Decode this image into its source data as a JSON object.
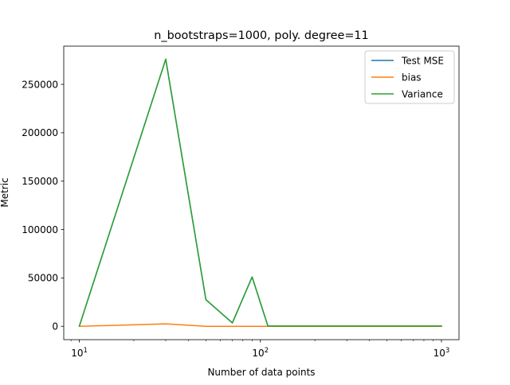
{
  "chart_data": {
    "type": "line",
    "title": "n_bootstraps=1000, poly. degree=11",
    "xlabel": "Number of data points",
    "ylabel": "Metric",
    "xscale": "log",
    "xlim": [
      8.2,
      1250
    ],
    "ylim": [
      -13800,
      289500
    ],
    "x": [
      10,
      30,
      50,
      70,
      90,
      110,
      1000
    ],
    "xticks": [
      {
        "value": 10,
        "base": "10",
        "exp": "1"
      },
      {
        "value": 100,
        "base": "10",
        "exp": "2"
      },
      {
        "value": 1000,
        "base": "10",
        "exp": "3"
      }
    ],
    "yticks": [
      {
        "value": 0,
        "label": "0"
      },
      {
        "value": 50000,
        "label": "50000"
      },
      {
        "value": 100000,
        "label": "100000"
      },
      {
        "value": 150000,
        "label": "150000"
      },
      {
        "value": 200000,
        "label": "200000"
      },
      {
        "value": 250000,
        "label": "250000"
      }
    ],
    "series": [
      {
        "name": "Test MSE",
        "color": "#1f77b4",
        "values": [
          200,
          276000,
          27500,
          3500,
          51000,
          300,
          300
        ]
      },
      {
        "name": "bias",
        "color": "#ff7f0e",
        "values": [
          0,
          2500,
          0,
          0,
          0,
          0,
          0
        ]
      },
      {
        "name": "Variance",
        "color": "#2ca02c",
        "values": [
          200,
          276000,
          27500,
          3500,
          51000,
          300,
          300
        ]
      }
    ],
    "legend": "top-right",
    "grid": false
  }
}
